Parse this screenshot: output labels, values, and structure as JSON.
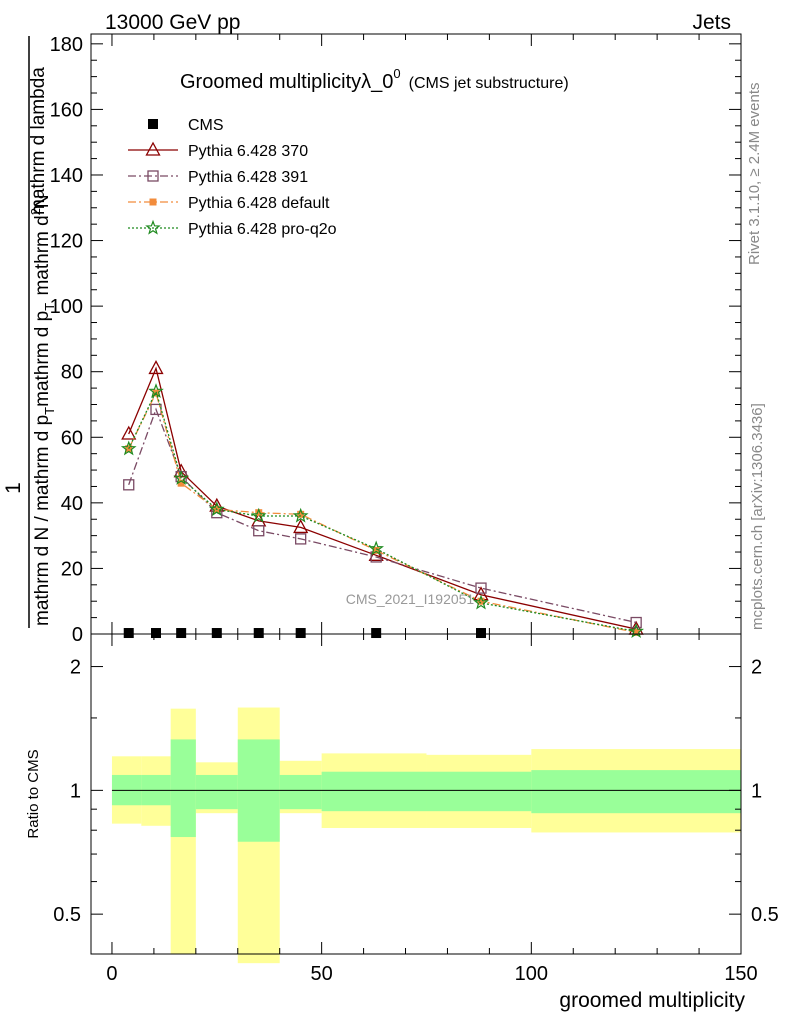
{
  "header": {
    "left": "13000 GeV pp",
    "right": "Jets"
  },
  "title": {
    "main": "Groomed multiplicityλ_0",
    "superscript": "0",
    "sub": "(CMS jet substructure)"
  },
  "side_labels": {
    "rivet": "Rivet 3.1.10, ≥ 2.4M events",
    "mcplots": "mcplots.cern.ch [arXiv:1306.3436]"
  },
  "watermark": "CMS_2021_I192051",
  "colors": {
    "cms": "#000000",
    "p370": "#8b0000",
    "p391": "#7a4a64",
    "pdefault": "#f28c3c",
    "pq2o": "#1f8a1f",
    "band_inner": "#99ff99",
    "band_outer": "#ffff99"
  },
  "chart_data": [
    {
      "type": "line",
      "title": "Groomed multiplicityλ_0^0 (CMS jet substructure)",
      "ylabel": "1 / mathrm d N / mathrm d p_T mathrm d p_T mathrm d^2N / mathrm d lambda",
      "ylabel_parts": {
        "frac_num": "1",
        "frac_den": "mathrm d N / mathrm d p",
        "frac_den_sub": "T",
        "frac_den_tail": "mathrm d p",
        "frac_den_tail_sub": "T",
        "num_main": "mathrm d",
        "num_sup": "2",
        "num_tail": "N",
        "num_den": "mathrm d lambda"
      },
      "xlim": [
        -5,
        150
      ],
      "ylim": [
        0,
        183
      ],
      "yticks": [
        0,
        20,
        40,
        60,
        80,
        100,
        120,
        140,
        160,
        180
      ],
      "legend": {
        "placement": "top-left",
        "entries": [
          "CMS",
          "Pythia 6.428 370",
          "Pythia 6.428 391",
          "Pythia 6.428 default",
          "Pythia 6.428 pro-q2o"
        ]
      },
      "series": [
        {
          "name": "CMS",
          "marker": "square",
          "x": [
            4,
            10.5,
            16.5,
            25,
            35,
            45,
            63,
            88
          ],
          "y": [
            0.3,
            0.3,
            0.3,
            0.3,
            0.3,
            0.3,
            0.3,
            0.3
          ]
        },
        {
          "name": "Pythia 6.428 370",
          "marker": "triangle",
          "line": "solid",
          "x": [
            4,
            10.5,
            16.5,
            25,
            35,
            45,
            63,
            88,
            125
          ],
          "y": [
            61,
            81,
            49.5,
            39,
            34.5,
            32.5,
            24,
            12,
            1.5
          ]
        },
        {
          "name": "Pythia 6.428 391",
          "marker": "open-square",
          "line": "dashdot",
          "x": [
            4,
            10.5,
            16.5,
            25,
            35,
            45,
            63,
            88,
            125
          ],
          "y": [
            45.5,
            68.5,
            48,
            37,
            31.5,
            29,
            23.5,
            14,
            3.5
          ]
        },
        {
          "name": "Pythia 6.428 default",
          "marker": "filled-square",
          "line": "dashdot",
          "x": [
            4,
            10.5,
            16.5,
            25,
            35,
            45,
            63,
            88,
            125
          ],
          "y": [
            56.5,
            73.5,
            46,
            38,
            37,
            36.5,
            25.5,
            10,
            0.5
          ]
        },
        {
          "name": "Pythia 6.428 pro-q2o",
          "marker": "star",
          "line": "dotted",
          "x": [
            4,
            10.5,
            16.5,
            25,
            35,
            45,
            63,
            88,
            125
          ],
          "y": [
            56.5,
            74,
            47.5,
            38,
            36,
            36,
            26,
            9.5,
            0.8
          ]
        }
      ]
    },
    {
      "type": "area",
      "ylabel": "Ratio to CMS",
      "xlabel": "groomed multiplicity",
      "xlim": [
        -5,
        150
      ],
      "ylim": [
        0.4,
        2.4
      ],
      "log_y": true,
      "yticks": [
        0.5,
        1,
        2
      ],
      "xticks": [
        0,
        50,
        100,
        150
      ],
      "bins": [
        {
          "x0": 0,
          "x1": 7,
          "inner": [
            0.92,
            1.09
          ],
          "outer": [
            0.83,
            1.21
          ]
        },
        {
          "x0": 7,
          "x1": 14,
          "inner": [
            0.92,
            1.09
          ],
          "outer": [
            0.82,
            1.21
          ]
        },
        {
          "x0": 14,
          "x1": 20,
          "inner": [
            0.77,
            1.33
          ],
          "outer": [
            0.4,
            1.58
          ]
        },
        {
          "x0": 20,
          "x1": 30,
          "inner": [
            0.9,
            1.09
          ],
          "outer": [
            0.88,
            1.17
          ]
        },
        {
          "x0": 30,
          "x1": 40,
          "inner": [
            0.75,
            1.33
          ],
          "outer": [
            0.38,
            1.59
          ]
        },
        {
          "x0": 40,
          "x1": 50,
          "inner": [
            0.9,
            1.09
          ],
          "outer": [
            0.88,
            1.18
          ]
        },
        {
          "x0": 50,
          "x1": 75,
          "inner": [
            0.89,
            1.11
          ],
          "outer": [
            0.81,
            1.23
          ]
        },
        {
          "x0": 75,
          "x1": 100,
          "inner": [
            0.89,
            1.11
          ],
          "outer": [
            0.81,
            1.22
          ]
        },
        {
          "x0": 100,
          "x1": 150,
          "inner": [
            0.88,
            1.12
          ],
          "outer": [
            0.79,
            1.26
          ]
        }
      ]
    }
  ]
}
